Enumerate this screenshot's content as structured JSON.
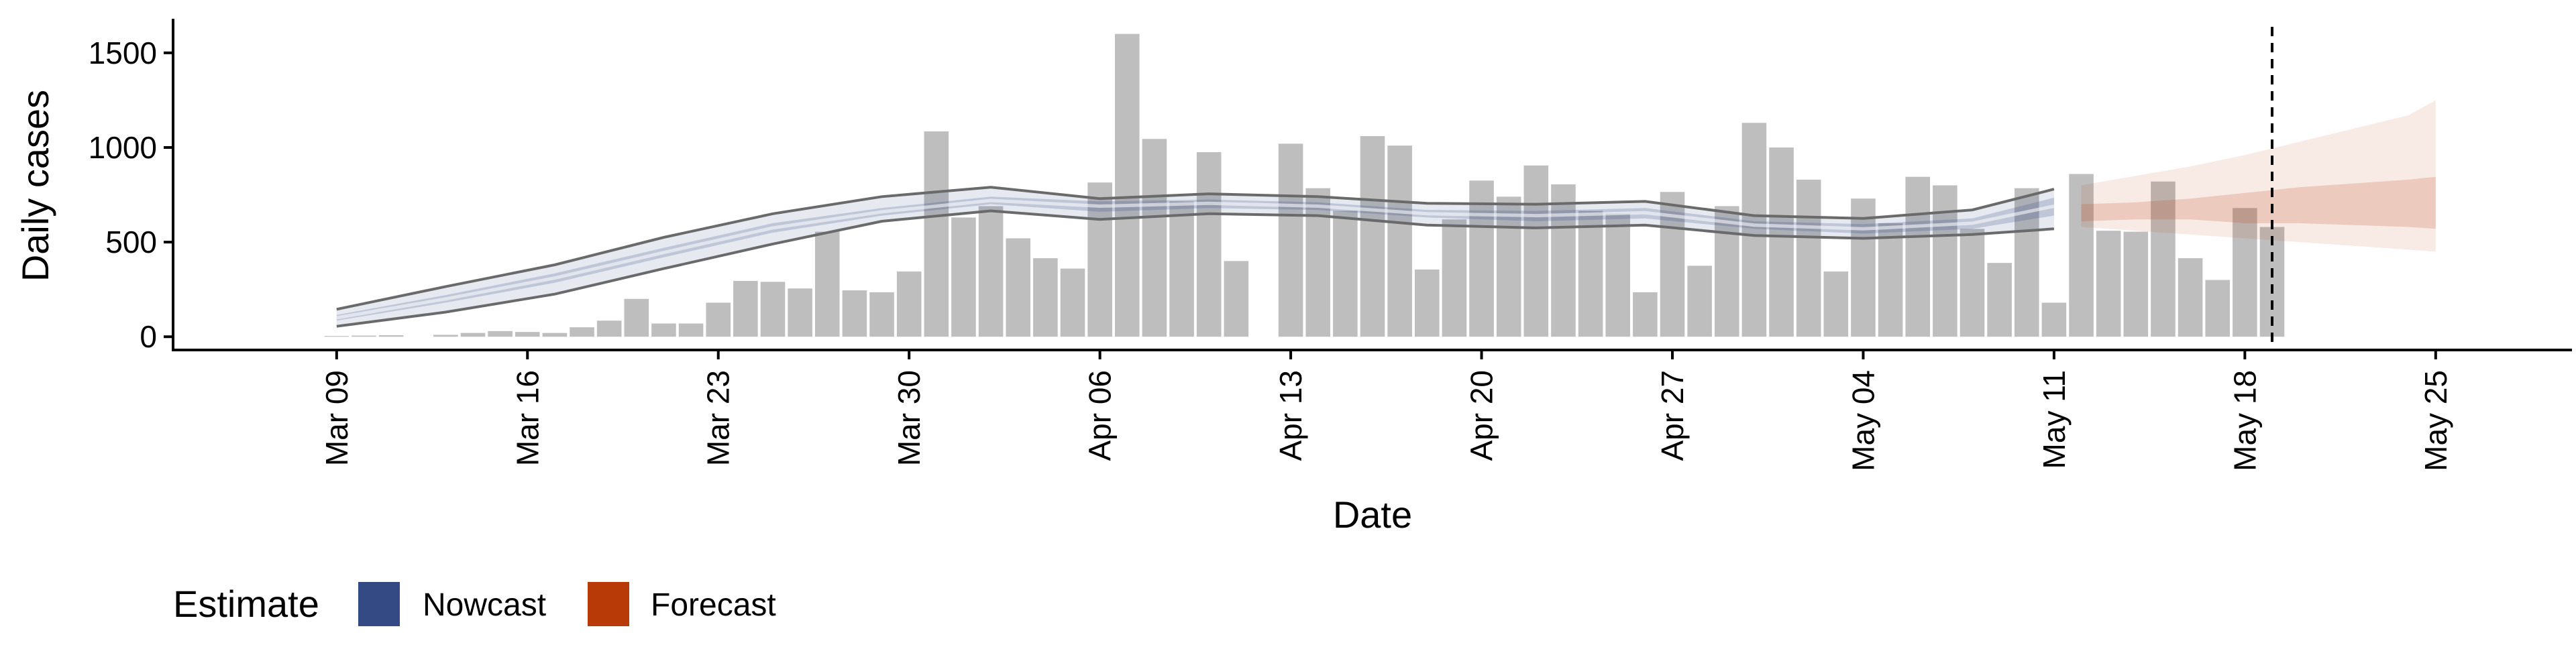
{
  "chart_data": {
    "type": "bar",
    "title": "",
    "xlabel": "Date",
    "ylabel": "Daily cases",
    "ylim": [
      -70,
      1680
    ],
    "yticks": [
      0,
      500,
      1000,
      1500
    ],
    "xlim": [
      "2020-03-03",
      "2020-05-30"
    ],
    "xticks": [
      "2020-03-09",
      "2020-03-16",
      "2020-03-23",
      "2020-03-30",
      "2020-04-06",
      "2020-04-13",
      "2020-04-20",
      "2020-04-27",
      "2020-05-04",
      "2020-05-11",
      "2020-05-18",
      "2020-05-25"
    ],
    "xtick_labels": [
      "Mar 09",
      "Mar 16",
      "Mar 23",
      "Mar 30",
      "Apr 06",
      "Apr 13",
      "Apr 20",
      "Apr 27",
      "May 04",
      "May 11",
      "May 18",
      "May 25"
    ],
    "bars": {
      "start_date": "2020-03-09",
      "values": [
        4,
        6,
        8,
        0,
        10,
        20,
        30,
        25,
        20,
        50,
        85,
        200,
        70,
        70,
        180,
        295,
        290,
        255,
        555,
        245,
        235,
        345,
        1085,
        630,
        690,
        520,
        415,
        360,
        815,
        1600,
        1045,
        715,
        975,
        400,
        0,
        1020,
        785,
        665,
        1060,
        1010,
        355,
        620,
        825,
        740,
        905,
        805,
        665,
        650,
        235,
        765,
        375,
        690,
        1130,
        1000,
        830,
        345,
        730,
        600,
        845,
        800,
        570,
        390,
        785,
        180,
        860,
        560,
        555,
        820,
        415,
        300,
        680,
        580
      ],
      "color": "#bebebe"
    },
    "nowcast": {
      "name": "Nowcast",
      "color": "#334a84",
      "x": [
        "2020-03-09",
        "2020-03-13",
        "2020-03-17",
        "2020-03-21",
        "2020-03-25",
        "2020-03-29",
        "2020-04-02",
        "2020-04-06",
        "2020-04-10",
        "2020-04-14",
        "2020-04-18",
        "2020-04-22",
        "2020-04-26",
        "2020-04-30",
        "2020-05-04",
        "2020-05-08",
        "2020-05-11"
      ],
      "median": [
        100,
        200,
        310,
        445,
        575,
        660,
        720,
        690,
        705,
        690,
        650,
        640,
        655,
        590,
        570,
        600,
        690
      ],
      "lower_inner": [
        85,
        180,
        285,
        420,
        550,
        640,
        700,
        660,
        680,
        670,
        630,
        610,
        625,
        570,
        545,
        570,
        640
      ],
      "upper_inner": [
        115,
        220,
        335,
        470,
        600,
        680,
        740,
        715,
        725,
        710,
        670,
        665,
        680,
        610,
        595,
        625,
        735
      ],
      "lower": [
        55,
        130,
        225,
        360,
        490,
        610,
        665,
        620,
        650,
        640,
        590,
        575,
        590,
        535,
        520,
        540,
        570
      ],
      "upper": [
        145,
        265,
        380,
        525,
        650,
        740,
        790,
        730,
        755,
        740,
        705,
        700,
        715,
        640,
        625,
        670,
        780
      ]
    },
    "forecast": {
      "name": "Forecast",
      "color": "#b73a07",
      "x": [
        "2020-05-12",
        "2020-05-14",
        "2020-05-16",
        "2020-05-18",
        "2020-05-20",
        "2020-05-22",
        "2020-05-24",
        "2020-05-25"
      ],
      "lower_inner": [
        610,
        620,
        620,
        600,
        600,
        590,
        580,
        570
      ],
      "upper_inner": [
        700,
        710,
        730,
        760,
        790,
        810,
        830,
        845
      ],
      "lower": [
        580,
        560,
        540,
        520,
        500,
        480,
        460,
        450
      ],
      "upper": [
        800,
        850,
        900,
        960,
        1030,
        1100,
        1170,
        1250
      ]
    },
    "vline": "2020-05-19",
    "grid": false,
    "legend": {
      "title": "Estimate",
      "placement": "bottom-left",
      "items": [
        {
          "label": "Nowcast",
          "color": "#334a84"
        },
        {
          "label": "Forecast",
          "color": "#b73a07"
        }
      ]
    }
  }
}
